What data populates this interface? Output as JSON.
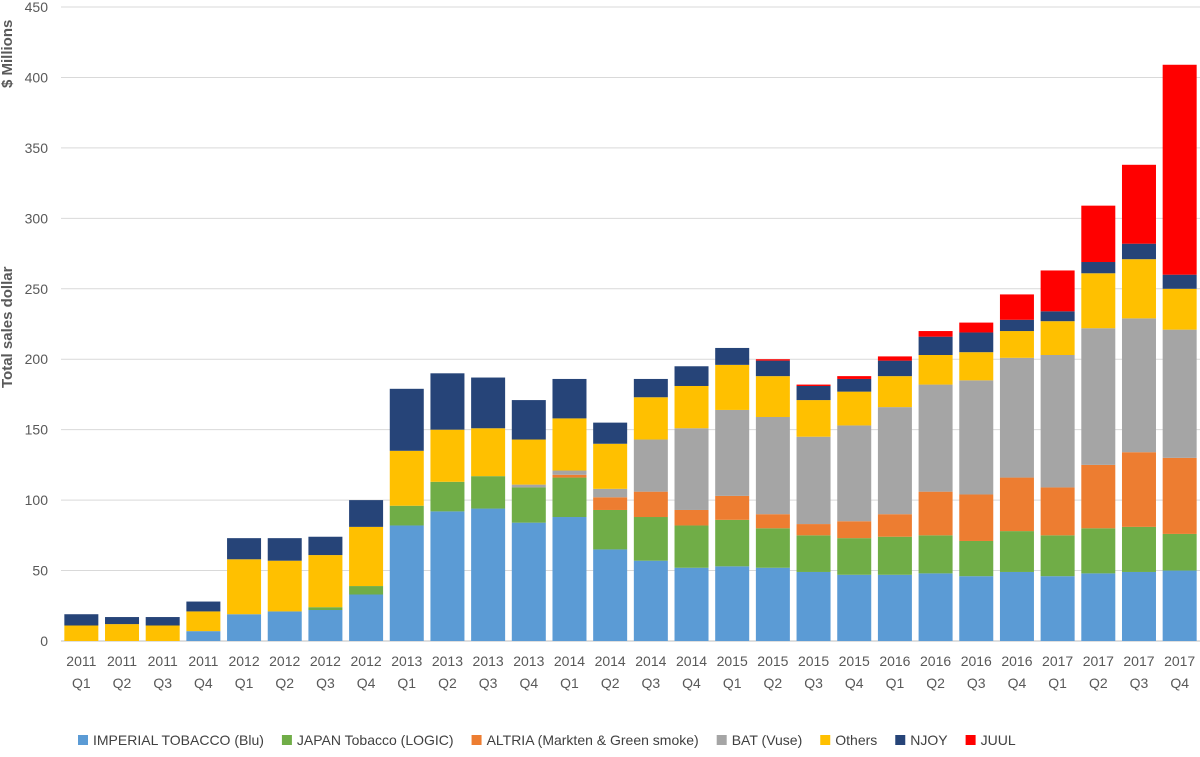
{
  "chart_data": {
    "type": "stacked-bar",
    "title": "",
    "ylabel_line1": "$ Millions",
    "ylabel_line2": "Total sales dollar",
    "ylim": [
      0,
      450
    ],
    "yticks": [
      0,
      50,
      100,
      150,
      200,
      250,
      300,
      350,
      400,
      450
    ],
    "grid": true,
    "legend_position": "bottom",
    "categories": [
      {
        "year": "2011",
        "quarter": "Q1"
      },
      {
        "year": "2011",
        "quarter": "Q2"
      },
      {
        "year": "2011",
        "quarter": "Q3"
      },
      {
        "year": "2011",
        "quarter": "Q4"
      },
      {
        "year": "2012",
        "quarter": "Q1"
      },
      {
        "year": "2012",
        "quarter": "Q2"
      },
      {
        "year": "2012",
        "quarter": "Q3"
      },
      {
        "year": "2012",
        "quarter": "Q4"
      },
      {
        "year": "2013",
        "quarter": "Q1"
      },
      {
        "year": "2013",
        "quarter": "Q2"
      },
      {
        "year": "2013",
        "quarter": "Q3"
      },
      {
        "year": "2013",
        "quarter": "Q4"
      },
      {
        "year": "2014",
        "quarter": "Q1"
      },
      {
        "year": "2014",
        "quarter": "Q2"
      },
      {
        "year": "2014",
        "quarter": "Q3"
      },
      {
        "year": "2014",
        "quarter": "Q4"
      },
      {
        "year": "2015",
        "quarter": "Q1"
      },
      {
        "year": "2015",
        "quarter": "Q2"
      },
      {
        "year": "2015",
        "quarter": "Q3"
      },
      {
        "year": "2015",
        "quarter": "Q4"
      },
      {
        "year": "2016",
        "quarter": "Q1"
      },
      {
        "year": "2016",
        "quarter": "Q2"
      },
      {
        "year": "2016",
        "quarter": "Q3"
      },
      {
        "year": "2016",
        "quarter": "Q4"
      },
      {
        "year": "2017",
        "quarter": "Q1"
      },
      {
        "year": "2017",
        "quarter": "Q2"
      },
      {
        "year": "2017",
        "quarter": "Q3"
      },
      {
        "year": "2017",
        "quarter": "Q4"
      }
    ],
    "series": [
      {
        "name": "IMPERIAL TOBACCO (Blu)",
        "color": "#5B9BD5",
        "values": [
          0,
          0,
          0,
          7,
          19,
          21,
          22,
          33,
          82,
          92,
          94,
          84,
          88,
          65,
          57,
          52,
          53,
          52,
          49,
          47,
          47,
          48,
          46,
          49,
          46,
          48,
          49,
          50
        ]
      },
      {
        "name": "JAPAN Tobacco (LOGIC)",
        "color": "#70AD47",
        "values": [
          0,
          0,
          0,
          0,
          0,
          0,
          2,
          6,
          14,
          21,
          23,
          25,
          28,
          28,
          31,
          30,
          33,
          28,
          26,
          26,
          27,
          27,
          25,
          29,
          29,
          32,
          32,
          26
        ]
      },
      {
        "name": "ALTRIA (Markten & Green smoke)",
        "color": "#ED7D31",
        "values": [
          0,
          0,
          0,
          0,
          0,
          0,
          0,
          0,
          0,
          0,
          0,
          0,
          2,
          9,
          18,
          11,
          17,
          10,
          8,
          12,
          16,
          31,
          33,
          38,
          34,
          45,
          53,
          54
        ]
      },
      {
        "name": "BAT (Vuse)",
        "color": "#A5A5A5",
        "values": [
          0,
          0,
          0,
          0,
          0,
          0,
          0,
          0,
          0,
          0,
          0,
          2,
          3,
          6,
          37,
          58,
          61,
          69,
          62,
          68,
          76,
          76,
          81,
          85,
          94,
          97,
          95,
          91
        ]
      },
      {
        "name": "Others",
        "color": "#FFC000",
        "values": [
          11,
          12,
          11,
          14,
          39,
          36,
          37,
          42,
          39,
          37,
          34,
          32,
          37,
          32,
          30,
          30,
          32,
          29,
          26,
          24,
          22,
          21,
          20,
          19,
          24,
          39,
          42,
          29
        ]
      },
      {
        "name": "NJOY",
        "color": "#264478",
        "values": [
          8,
          5,
          6,
          7,
          15,
          16,
          13,
          19,
          44,
          40,
          36,
          28,
          28,
          15,
          13,
          14,
          12,
          11,
          10,
          9,
          11,
          13,
          14,
          8,
          7,
          8,
          11,
          10
        ]
      },
      {
        "name": "JUUL",
        "color": "#FF0000",
        "values": [
          0,
          0,
          0,
          0,
          0,
          0,
          0,
          0,
          0,
          0,
          0,
          0,
          0,
          0,
          0,
          0,
          0,
          1,
          1,
          2,
          3,
          4,
          7,
          18,
          29,
          40,
          56,
          149
        ]
      }
    ]
  }
}
